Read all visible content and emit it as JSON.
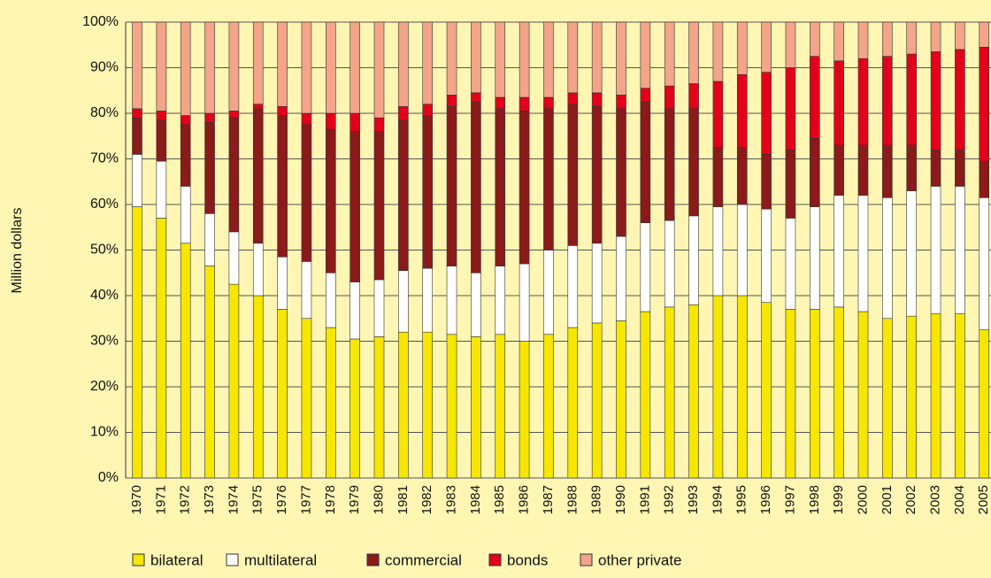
{
  "chart_data": {
    "type": "stacked_bar",
    "y_label": "Million dollars",
    "categories": [
      "1970",
      "1971",
      "1972",
      "1973",
      "1974",
      "1975",
      "1976",
      "1977",
      "1978",
      "1979",
      "1980",
      "1981",
      "1982",
      "1983",
      "1984",
      "1985",
      "1986",
      "1987",
      "1988",
      "1989",
      "1990",
      "1991",
      "1992",
      "1993",
      "1994",
      "1995",
      "1996",
      "1997",
      "1998",
      "1999",
      "2000",
      "2001",
      "2002",
      "2003",
      "2004",
      "2005"
    ],
    "series": [
      {
        "name": "bilateral",
        "color": "#f7e600",
        "values": [
          59.5,
          57,
          51.5,
          46.5,
          42.5,
          40,
          37,
          35,
          33,
          30.5,
          31,
          32,
          32,
          31.5,
          31,
          31.5,
          30,
          31.5,
          33,
          34,
          34.5,
          36.5,
          37.5,
          38,
          40,
          40,
          38.5,
          37,
          37,
          37.5,
          36.5,
          35,
          35.5,
          36,
          36,
          32.5
        ]
      },
      {
        "name": "multilateral",
        "color": "#ffffff",
        "values": [
          11.5,
          12.5,
          12.5,
          11.5,
          11.5,
          11.5,
          11.5,
          12.5,
          12,
          12.5,
          12.5,
          13.5,
          14,
          15,
          14,
          15,
          17,
          18.5,
          18,
          17.5,
          18.5,
          19.5,
          19,
          19.5,
          19.5,
          20,
          20.5,
          20,
          22.5,
          24.5,
          25.5,
          26.5,
          27.5,
          28,
          28,
          29
        ]
      },
      {
        "name": "commercial",
        "color": "#8b1a1a",
        "values": [
          8,
          9,
          13.5,
          20,
          25,
          29.5,
          31,
          30,
          31.5,
          33,
          32.5,
          33,
          33.5,
          35,
          37.5,
          34.5,
          33.5,
          31,
          31,
          30,
          28,
          26.5,
          24.5,
          23.5,
          13,
          12.5,
          12,
          15,
          15,
          11,
          11,
          11.5,
          10,
          8,
          8,
          8
        ]
      },
      {
        "name": "bonds",
        "color": "#e3001b",
        "values": [
          2,
          2,
          2,
          2,
          1.5,
          1,
          2,
          2.5,
          3.5,
          4,
          3,
          3,
          2.5,
          2.5,
          2,
          2.5,
          3,
          2.5,
          2.5,
          3,
          3,
          3,
          5,
          5.5,
          14.5,
          16,
          18,
          18,
          18,
          18.5,
          19,
          19.5,
          20,
          21.5,
          22,
          25
        ]
      },
      {
        "name": "other private",
        "color": "#f4a488",
        "values": [
          19,
          19.5,
          20.5,
          20,
          19.5,
          18,
          18.5,
          20,
          20,
          20,
          21,
          18.5,
          18,
          16,
          15.5,
          16.5,
          16.5,
          16.5,
          15.5,
          15.5,
          16,
          14.5,
          14,
          13.5,
          13,
          11.5,
          11,
          10,
          7.5,
          8.5,
          8,
          7.5,
          7,
          6.5,
          6,
          5.5
        ]
      }
    ],
    "ylim": [
      0,
      100
    ],
    "yticks": [
      {
        "value": 0,
        "label": "0%"
      },
      {
        "value": 10,
        "label": "10%"
      },
      {
        "value": 20,
        "label": "20%"
      },
      {
        "value": 30,
        "label": "30%"
      },
      {
        "value": 40,
        "label": "40%"
      },
      {
        "value": 50,
        "label": "50%"
      },
      {
        "value": 60,
        "label": "60%"
      },
      {
        "value": 70,
        "label": "70%"
      },
      {
        "value": 80,
        "label": "80%"
      },
      {
        "value": 90,
        "label": "90%"
      },
      {
        "value": 100,
        "label": "100%"
      }
    ],
    "grid": true,
    "legend": "bottom"
  }
}
